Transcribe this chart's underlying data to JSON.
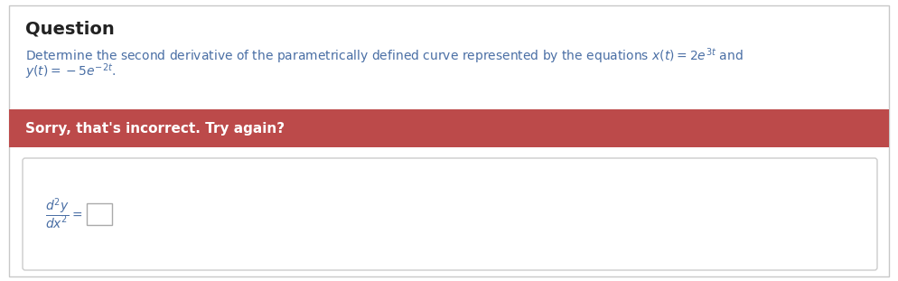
{
  "bg_color": "#ffffff",
  "outer_border_color": "#c8c8c8",
  "title_text": "Question",
  "title_color": "#222222",
  "title_fontsize": 14,
  "question_line1": "Determine the second derivative of the parametrically defined curve represented by the equations $x(t) = 2e^{3t}$ and",
  "question_line2": "$y(t) = -5e^{-2t}$.",
  "question_color": "#4a6fa5",
  "question_fontsize": 10,
  "banner_color": "#bc4a4a",
  "banner_text": "Sorry, that's incorrect. Try again?",
  "banner_text_color": "#ffffff",
  "banner_text_fontsize": 11,
  "answer_box_border_color": "#cccccc",
  "answer_label": "$\\dfrac{d^2y}{dx^2}=$",
  "answer_label_color": "#4a6fa5",
  "answer_label_fontsize": 10,
  "input_box_color": "#ffffff",
  "input_box_border": "#aaaaaa"
}
